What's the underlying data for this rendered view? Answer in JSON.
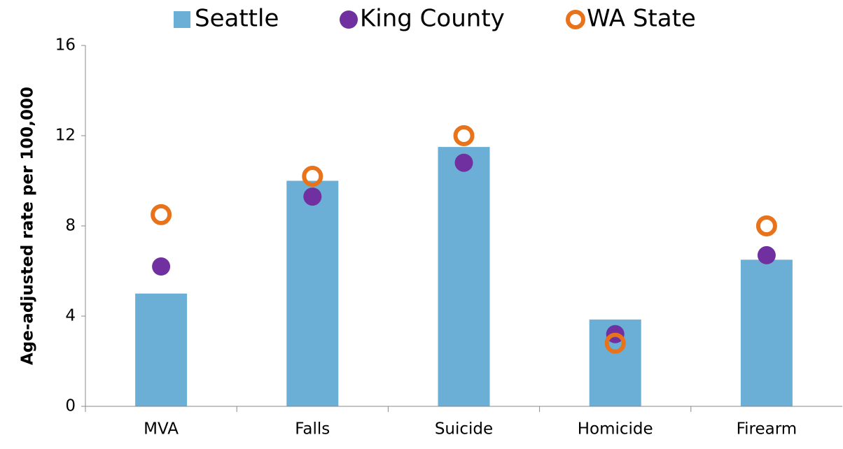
{
  "chart_data": {
    "type": "bar",
    "y_label": "Age-adjusted rate per 100,000",
    "categories": [
      "MVA",
      "Falls",
      "Suicide",
      "Homicide",
      "Firearm"
    ],
    "series": [
      {
        "name": "Seattle",
        "type": "bar",
        "color": "#6baed6",
        "values": [
          5.0,
          10.0,
          11.5,
          3.85,
          6.5
        ]
      },
      {
        "name": "King County",
        "type": "dot",
        "color": "#7030a0",
        "values": [
          6.2,
          9.3,
          10.8,
          3.2,
          6.7
        ]
      },
      {
        "name": "WA State",
        "type": "ring",
        "color": "#e8731a",
        "values": [
          8.5,
          10.2,
          12.0,
          2.8,
          8.0
        ]
      }
    ],
    "ylim": [
      0,
      16
    ],
    "yticks": [
      0,
      4,
      8,
      12,
      16
    ],
    "legend": "top"
  }
}
